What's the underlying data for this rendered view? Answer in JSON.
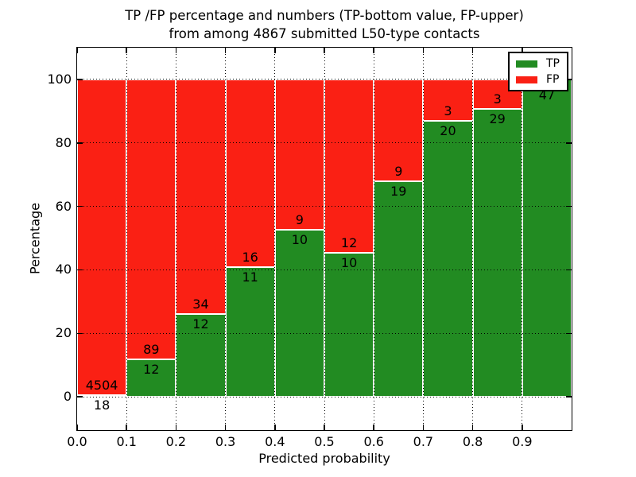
{
  "chart_data": {
    "type": "bar",
    "stacked": true,
    "title_line1": "TP /FP percentage and numbers (TP-bottom value, FP-upper)",
    "title_line2": "from among 4867 submitted L50-type contacts",
    "xlabel": "Predicted probability",
    "ylabel": "Percentage",
    "x_tick_labels": [
      "0.0",
      "0.1",
      "0.2",
      "0.3",
      "0.4",
      "0.5",
      "0.6",
      "0.7",
      "0.8",
      "0.9"
    ],
    "y_ticks": [
      0,
      20,
      40,
      60,
      80,
      100
    ],
    "xlim": [
      0.0,
      1.0
    ],
    "ylim": [
      -10.5,
      110.0
    ],
    "grid": true,
    "bin_width": 0.1,
    "categories": [
      "0.0-0.1",
      "0.1-0.2",
      "0.2-0.3",
      "0.3-0.4",
      "0.4-0.5",
      "0.5-0.6",
      "0.6-0.7",
      "0.7-0.8",
      "0.8-0.9",
      "0.9-1.0"
    ],
    "series": [
      {
        "name": "TP",
        "color": "#228b22",
        "counts": [
          18,
          12,
          12,
          11,
          10,
          10,
          19,
          20,
          29,
          47
        ]
      },
      {
        "name": "FP",
        "color": "#fa2014",
        "counts": [
          4504,
          89,
          34,
          16,
          9,
          12,
          9,
          3,
          3,
          0
        ]
      }
    ],
    "tp_percent": [
      0.4,
      11.9,
      26.1,
      40.7,
      52.6,
      45.5,
      67.9,
      87.0,
      90.6,
      100.0
    ],
    "legend": [
      {
        "label": "TP",
        "color": "#228b22"
      },
      {
        "label": "FP",
        "color": "#fa2014"
      }
    ],
    "legend_position": "upper right"
  }
}
